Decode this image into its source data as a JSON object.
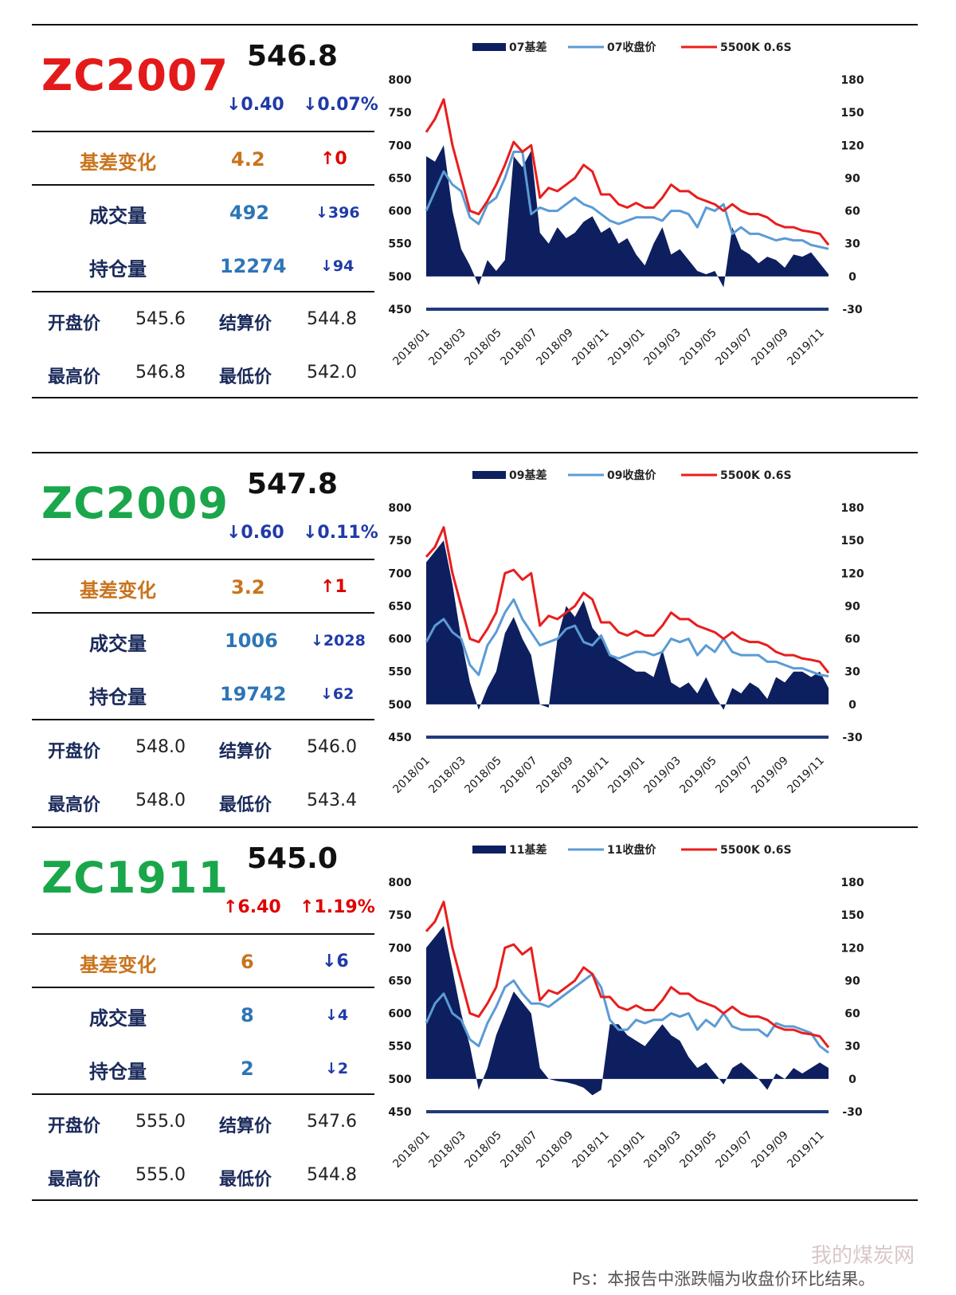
{
  "panels": [
    {
      "code": "ZC2007",
      "code_color": "#e41a1a",
      "price": "546.8",
      "change": "↓0.40",
      "change_pct": "↓0.07%",
      "change_dir": "down",
      "basis_label": "基差变化",
      "basis_value": "4.2",
      "basis_delta": "↑0",
      "basis_dir": "up",
      "volume_label": "成交量",
      "volume_value": "492",
      "volume_delta": "↓396",
      "volume_dir": "down",
      "oi_label": "持仓量",
      "oi_value": "12274",
      "oi_delta": "↓94",
      "oi_dir": "down",
      "open_label": "开盘价",
      "open": "545.6",
      "settle_label": "结算价",
      "settle": "544.8",
      "high_label": "最高价",
      "high": "546.8",
      "low_label": "最低价",
      "low": "542.0"
    },
    {
      "code": "ZC2009",
      "code_color": "#1aa64a",
      "price": "547.8",
      "change": "↓0.60",
      "change_pct": "↓0.11%",
      "change_dir": "down",
      "basis_label": "基差变化",
      "basis_value": "3.2",
      "basis_delta": "↑1",
      "basis_dir": "up",
      "volume_label": "成交量",
      "volume_value": "1006",
      "volume_delta": "↓2028",
      "volume_dir": "down",
      "oi_label": "持仓量",
      "oi_value": "19742",
      "oi_delta": "↓62",
      "oi_dir": "down",
      "open_label": "开盘价",
      "open": "548.0",
      "settle_label": "结算价",
      "settle": "546.0",
      "high_label": "最高价",
      "high": "548.0",
      "low_label": "最低价",
      "low": "543.4"
    },
    {
      "code": "ZC1911",
      "code_color": "#1aa64a",
      "price": "545.0",
      "change": "↑6.40",
      "change_pct": "↑1.19%",
      "change_dir": "up",
      "basis_label": "基差变化",
      "basis_value": "6",
      "basis_delta": "↓6",
      "basis_dir": "down",
      "volume_label": "成交量",
      "volume_value": "8",
      "volume_delta": "↓4",
      "volume_dir": "down",
      "oi_label": "持仓量",
      "oi_value": "2",
      "oi_delta": "↓2",
      "oi_dir": "down",
      "open_label": "开盘价",
      "open": "555.0",
      "settle_label": "结算价",
      "settle": "547.6",
      "high_label": "最高价",
      "high": "555.0",
      "low_label": "最低价",
      "low": "544.8"
    }
  ],
  "chart_data": [
    {
      "type": "line",
      "legend": [
        "07基差",
        "07收盘价",
        "5500K 0.6S"
      ],
      "colors": {
        "basis": "#0d1f5e",
        "close": "#5b9bd5",
        "spot": "#e81e1e",
        "axis": "#1f3b7a"
      },
      "x_ticks": [
        "2018/01",
        "2018/03",
        "2018/05",
        "2018/07",
        "2018/09",
        "2018/11",
        "2019/01",
        "2019/03",
        "2019/05",
        "2019/07",
        "2019/09",
        "2019/11"
      ],
      "y_left_ticks": [
        450,
        500,
        550,
        600,
        650,
        700,
        750,
        800
      ],
      "y_right_ticks": [
        -30,
        0,
        30,
        60,
        90,
        120,
        150,
        180
      ],
      "ylim_left": [
        450,
        800
      ],
      "ylim_right": [
        -30,
        180
      ],
      "x": [
        0,
        0.5,
        1,
        1.5,
        2,
        2.5,
        3,
        3.5,
        4,
        4.5,
        5,
        5.5,
        6,
        6.5,
        7,
        7.5,
        8,
        8.5,
        9,
        9.5,
        10,
        10.5,
        11,
        11.5,
        12,
        12.5,
        13,
        13.5,
        14,
        14.5,
        15,
        15.5,
        16,
        16.5,
        17,
        17.5,
        18,
        18.5,
        19,
        19.5,
        20,
        20.5,
        21,
        21.5,
        22,
        22.5,
        23
      ],
      "series": [
        {
          "name": "07基差",
          "axis": "right",
          "values": [
            110,
            105,
            120,
            60,
            25,
            10,
            -8,
            15,
            5,
            15,
            110,
            100,
            115,
            40,
            30,
            45,
            35,
            40,
            50,
            55,
            40,
            45,
            30,
            35,
            20,
            10,
            30,
            45,
            20,
            25,
            15,
            5,
            2,
            5,
            -10,
            45,
            25,
            20,
            12,
            18,
            15,
            8,
            20,
            18,
            22,
            12,
            2
          ]
        },
        {
          "name": "07收盘价",
          "axis": "left",
          "values": [
            600,
            630,
            660,
            640,
            630,
            590,
            580,
            610,
            620,
            650,
            690,
            690,
            595,
            605,
            600,
            600,
            610,
            620,
            610,
            605,
            595,
            585,
            580,
            585,
            590,
            590,
            590,
            585,
            600,
            600,
            595,
            575,
            605,
            600,
            610,
            565,
            575,
            565,
            565,
            560,
            555,
            558,
            555,
            555,
            548,
            545,
            542
          ]
        },
        {
          "name": "5500K 0.6S",
          "axis": "left",
          "values": [
            720,
            740,
            770,
            700,
            650,
            600,
            595,
            615,
            640,
            670,
            705,
            690,
            700,
            620,
            635,
            630,
            640,
            650,
            670,
            660,
            625,
            625,
            610,
            605,
            612,
            605,
            605,
            620,
            640,
            630,
            630,
            620,
            615,
            610,
            600,
            610,
            600,
            595,
            595,
            590,
            580,
            575,
            575,
            570,
            568,
            565,
            548
          ]
        }
      ]
    },
    {
      "type": "line",
      "legend": [
        "09基差",
        "09收盘价",
        "5500K 0.6S"
      ],
      "colors": {
        "basis": "#0d1f5e",
        "close": "#5b9bd5",
        "spot": "#e81e1e",
        "axis": "#1f3b7a"
      },
      "x_ticks": [
        "2018/01",
        "2018/03",
        "2018/05",
        "2018/07",
        "2018/09",
        "2018/11",
        "2019/01",
        "2019/03",
        "2019/05",
        "2019/07",
        "2019/09",
        "2019/11"
      ],
      "y_left_ticks": [
        450,
        500,
        550,
        600,
        650,
        700,
        750,
        800
      ],
      "y_right_ticks": [
        -30,
        0,
        30,
        60,
        90,
        120,
        150,
        180
      ],
      "ylim_left": [
        450,
        800
      ],
      "ylim_right": [
        -30,
        180
      ],
      "x": [
        0,
        0.5,
        1,
        1.5,
        2,
        2.5,
        3,
        3.5,
        4,
        4.5,
        5,
        5.5,
        6,
        6.5,
        7,
        7.5,
        8,
        8.5,
        9,
        9.5,
        10,
        10.5,
        11,
        11.5,
        12,
        12.5,
        13,
        13.5,
        14,
        14.5,
        15,
        15.5,
        16,
        16.5,
        17,
        17.5,
        18,
        18.5,
        19,
        19.5,
        20,
        20.5,
        21,
        21.5,
        22,
        22.5,
        23
      ],
      "series": [
        {
          "name": "09基差",
          "axis": "right",
          "values": [
            130,
            140,
            150,
            110,
            60,
            20,
            -5,
            15,
            30,
            65,
            80,
            60,
            45,
            0,
            -3,
            60,
            90,
            80,
            95,
            70,
            60,
            45,
            40,
            35,
            30,
            30,
            25,
            50,
            20,
            15,
            20,
            10,
            25,
            8,
            -5,
            15,
            10,
            20,
            15,
            5,
            25,
            20,
            30,
            30,
            25,
            30,
            15
          ]
        },
        {
          "name": "09收盘价",
          "axis": "left",
          "values": [
            595,
            620,
            630,
            610,
            600,
            560,
            545,
            590,
            610,
            640,
            660,
            630,
            610,
            590,
            595,
            600,
            615,
            620,
            595,
            590,
            605,
            575,
            570,
            575,
            580,
            580,
            575,
            580,
            600,
            595,
            600,
            575,
            590,
            580,
            600,
            580,
            575,
            575,
            575,
            565,
            565,
            560,
            555,
            555,
            550,
            545,
            543
          ]
        },
        {
          "name": "5500K 0.6S",
          "axis": "left",
          "values": [
            725,
            740,
            770,
            700,
            650,
            600,
            595,
            615,
            640,
            700,
            705,
            690,
            700,
            620,
            635,
            630,
            640,
            650,
            670,
            660,
            625,
            625,
            610,
            605,
            612,
            605,
            605,
            620,
            640,
            630,
            630,
            620,
            615,
            610,
            600,
            610,
            600,
            595,
            595,
            590,
            580,
            575,
            575,
            570,
            568,
            565,
            548
          ]
        }
      ]
    },
    {
      "type": "line",
      "legend": [
        "11基差",
        "11收盘价",
        "5500K 0.6S"
      ],
      "colors": {
        "basis": "#0d1f5e",
        "close": "#5b9bd5",
        "spot": "#e81e1e",
        "axis": "#1f3b7a"
      },
      "x_ticks": [
        "2018/01",
        "2018/03",
        "2018/05",
        "2018/07",
        "2018/09",
        "2018/11",
        "2019/01",
        "2019/03",
        "2019/05",
        "2019/07",
        "2019/09",
        "2019/11"
      ],
      "y_left_ticks": [
        450,
        500,
        550,
        600,
        650,
        700,
        750,
        800
      ],
      "y_right_ticks": [
        -30,
        0,
        30,
        60,
        90,
        120,
        150,
        180
      ],
      "ylim_left": [
        450,
        800
      ],
      "ylim_right": [
        -30,
        180
      ],
      "x": [
        0,
        0.5,
        1,
        1.5,
        2,
        2.5,
        3,
        3.5,
        4,
        4.5,
        5,
        5.5,
        6,
        6.5,
        7,
        7.5,
        8,
        8.5,
        9,
        9.5,
        10,
        10.5,
        11,
        11.5,
        12,
        12.5,
        13,
        13.5,
        14,
        14.5,
        15,
        15.5,
        16,
        16.5,
        17,
        17.5,
        18,
        18.5,
        19,
        19.5,
        20,
        20.5,
        21,
        21.5,
        22,
        22.5,
        23
      ],
      "series": [
        {
          "name": "11基差",
          "axis": "right",
          "values": [
            120,
            130,
            140,
            100,
            60,
            30,
            -10,
            10,
            40,
            60,
            80,
            70,
            60,
            10,
            0,
            -2,
            -3,
            -5,
            -8,
            -15,
            -10,
            50,
            50,
            40,
            35,
            30,
            40,
            50,
            40,
            35,
            20,
            10,
            15,
            5,
            -5,
            10,
            15,
            8,
            0,
            -10,
            5,
            0,
            10,
            5,
            10,
            15,
            10
          ]
        },
        {
          "name": "11收盘价",
          "axis": "left",
          "values": [
            585,
            615,
            630,
            600,
            590,
            560,
            550,
            585,
            610,
            640,
            650,
            630,
            615,
            615,
            610,
            620,
            630,
            640,
            650,
            660,
            640,
            590,
            575,
            575,
            590,
            585,
            590,
            590,
            600,
            595,
            600,
            575,
            590,
            580,
            600,
            580,
            575,
            575,
            575,
            565,
            585,
            580,
            580,
            575,
            570,
            550,
            540
          ]
        },
        {
          "name": "5500K 0.6S",
          "axis": "left",
          "values": [
            725,
            740,
            770,
            700,
            650,
            600,
            595,
            615,
            640,
            700,
            705,
            690,
            700,
            620,
            635,
            630,
            640,
            650,
            670,
            660,
            625,
            625,
            610,
            605,
            612,
            605,
            605,
            620,
            640,
            630,
            630,
            620,
            615,
            610,
            600,
            610,
            600,
            595,
            595,
            590,
            580,
            575,
            575,
            570,
            568,
            565,
            548
          ]
        }
      ]
    }
  ],
  "footnote": "Ps：本报告中涨跌幅为收盘价环比结果。",
  "watermark": "我的煤炭网"
}
